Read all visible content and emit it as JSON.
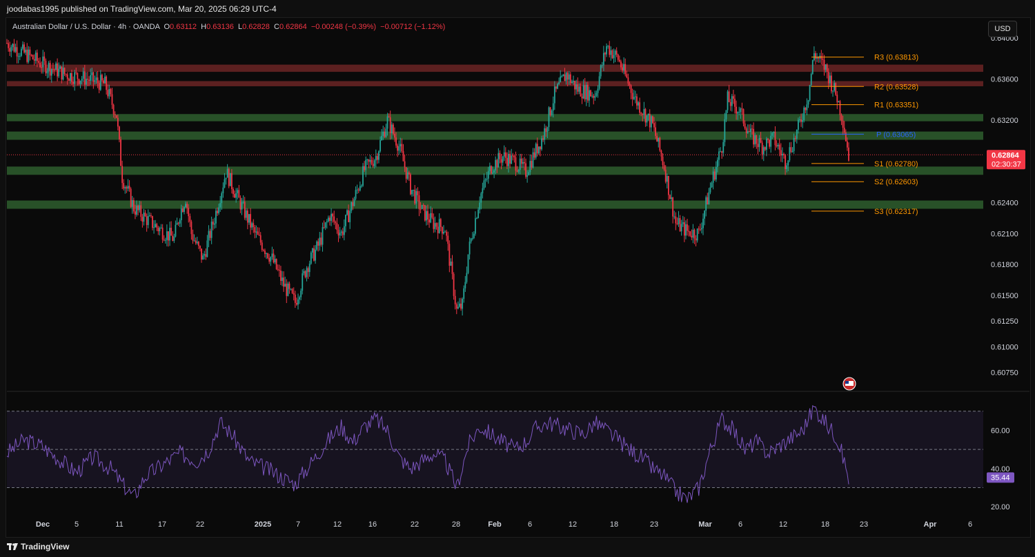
{
  "header": {
    "published": "joodabas1995 published on TradingView.com, Mar 20, 2025 06:29 UTC-4"
  },
  "legend": {
    "symbol": "Australian Dollar / U.S. Dollar · 4h · OANDA",
    "o_label": "O",
    "o": "0.63112",
    "h_label": "H",
    "h": "0.63136",
    "l_label": "L",
    "l": "0.62828",
    "c_label": "C",
    "c": "0.62864",
    "change": "−0.00248 (−0.39%)",
    "change2": "−0.00712 (−1.12%)"
  },
  "currency_button": "USD",
  "footer": {
    "brand": "TradingView"
  },
  "colors": {
    "up": "#26a69a",
    "down": "#f23645",
    "rsi": "#7e57c2",
    "pivot_orange": "#ff9800",
    "pivot_blue": "#2962ff",
    "zone_green": "#2e5e2e",
    "zone_red": "#6b2424"
  },
  "chart_data": [
    {
      "type": "candlestick",
      "timeframe": "4h",
      "y_ticks": [
        "0.64000",
        "0.63600",
        "0.63200",
        "0.62400",
        "0.62100",
        "0.61800",
        "0.61500",
        "0.61250",
        "0.61000",
        "0.60750"
      ],
      "y_tick_values": [
        0.64,
        0.636,
        0.632,
        0.624,
        0.621,
        0.618,
        0.615,
        0.6125,
        0.61,
        0.6075
      ],
      "x_ticks": [
        "Dec",
        "5",
        "11",
        "17",
        "22",
        "2025",
        "7",
        "12",
        "16",
        "22",
        "28",
        "Feb",
        "6",
        "12",
        "18",
        "23",
        "Mar",
        "6",
        "12",
        "18",
        "23",
        "Apr",
        "6"
      ],
      "last_price": "0.62864",
      "countdown": "02:30:37",
      "pivots": [
        {
          "label": "R3 (0.63813)",
          "value": 0.63813
        },
        {
          "label": "R2 (0.63528)",
          "value": 0.63528
        },
        {
          "label": "R1 (0.63351)",
          "value": 0.63351
        },
        {
          "label": "P (0.63065)",
          "value": 0.63065
        },
        {
          "label": "S1 (0.62780)",
          "value": 0.6278
        },
        {
          "label": "S2 (0.62603)",
          "value": 0.62603
        },
        {
          "label": "S3 (0.62317)",
          "value": 0.62317
        }
      ],
      "zones": [
        {
          "kind": "resistance",
          "low": 0.6367,
          "high": 0.6374
        },
        {
          "kind": "resistance",
          "low": 0.6353,
          "high": 0.6358
        },
        {
          "kind": "support",
          "low": 0.6319,
          "high": 0.6326
        },
        {
          "kind": "support",
          "low": 0.6301,
          "high": 0.6309
        },
        {
          "kind": "support",
          "low": 0.6267,
          "high": 0.6275
        },
        {
          "kind": "support",
          "low": 0.6234,
          "high": 0.6242
        }
      ],
      "close_path": [
        [
          0,
          0.6395
        ],
        [
          3,
          0.6385
        ],
        [
          6,
          0.6375
        ],
        [
          10,
          0.6365
        ],
        [
          14,
          0.636
        ],
        [
          17,
          0.6355
        ],
        [
          19,
          0.6325
        ],
        [
          20,
          0.6265
        ],
        [
          22,
          0.6235
        ],
        [
          24,
          0.6225
        ],
        [
          27,
          0.6212
        ],
        [
          29,
          0.6205
        ],
        [
          30,
          0.623
        ],
        [
          31,
          0.6245
        ],
        [
          32,
          0.621
        ],
        [
          34,
          0.6185
        ],
        [
          36,
          0.6225
        ],
        [
          38,
          0.627
        ],
        [
          40,
          0.6245
        ],
        [
          43,
          0.621
        ],
        [
          46,
          0.6185
        ],
        [
          48,
          0.616
        ],
        [
          50,
          0.6143
        ],
        [
          52,
          0.6178
        ],
        [
          54,
          0.6198
        ],
        [
          56,
          0.6228
        ],
        [
          58,
          0.621
        ],
        [
          60,
          0.624
        ],
        [
          62,
          0.6272
        ],
        [
          64,
          0.6285
        ],
        [
          66,
          0.632
        ],
        [
          68,
          0.6295
        ],
        [
          70,
          0.6255
        ],
        [
          72,
          0.6232
        ],
        [
          74,
          0.622
        ],
        [
          76,
          0.6215
        ],
        [
          78,
          0.6135
        ],
        [
          79,
          0.614
        ],
        [
          80,
          0.619
        ],
        [
          82,
          0.6245
        ],
        [
          84,
          0.6275
        ],
        [
          86,
          0.6285
        ],
        [
          88,
          0.628
        ],
        [
          90,
          0.627
        ],
        [
          93,
          0.6305
        ],
        [
          95,
          0.6345
        ],
        [
          97,
          0.6365
        ],
        [
          99,
          0.635
        ],
        [
          102,
          0.6345
        ],
        [
          104,
          0.6392
        ],
        [
          106,
          0.638
        ],
        [
          109,
          0.634
        ],
        [
          112,
          0.6315
        ],
        [
          114,
          0.6275
        ],
        [
          116,
          0.622
        ],
        [
          118,
          0.6212
        ],
        [
          120,
          0.621
        ],
        [
          122,
          0.6255
        ],
        [
          124,
          0.6295
        ],
        [
          125,
          0.634
        ],
        [
          127,
          0.633
        ],
        [
          129,
          0.6305
        ],
        [
          131,
          0.6295
        ],
        [
          133,
          0.6302
        ],
        [
          135,
          0.628
        ],
        [
          137,
          0.6308
        ],
        [
          139,
          0.6345
        ],
        [
          140,
          0.6385
        ],
        [
          142,
          0.637
        ],
        [
          144,
          0.6342
        ],
        [
          145,
          0.632
        ],
        [
          146,
          0.6286
        ]
      ],
      "price_range": [
        0.6058,
        0.6418
      ]
    },
    {
      "type": "line",
      "name": "RSI",
      "y_ticks": [
        "60.00",
        "40.00",
        "20.00"
      ],
      "y_tick_values": [
        60,
        40,
        20
      ],
      "bands": [
        70,
        50,
        30
      ],
      "current": "35.44",
      "range": [
        15,
        80
      ],
      "path": [
        [
          0,
          48
        ],
        [
          3,
          55
        ],
        [
          6,
          52
        ],
        [
          9,
          45
        ],
        [
          12,
          38
        ],
        [
          15,
          46
        ],
        [
          18,
          40
        ],
        [
          20,
          32
        ],
        [
          22,
          25
        ],
        [
          24,
          36
        ],
        [
          27,
          42
        ],
        [
          30,
          48
        ],
        [
          33,
          44
        ],
        [
          35,
          50
        ],
        [
          37,
          64
        ],
        [
          39,
          58
        ],
        [
          42,
          44
        ],
        [
          45,
          40
        ],
        [
          48,
          35
        ],
        [
          50,
          32
        ],
        [
          53,
          44
        ],
        [
          56,
          56
        ],
        [
          58,
          62
        ],
        [
          60,
          54
        ],
        [
          62,
          62
        ],
        [
          64,
          66
        ],
        [
          66,
          60
        ],
        [
          68,
          46
        ],
        [
          70,
          40
        ],
        [
          72,
          44
        ],
        [
          74,
          48
        ],
        [
          76,
          44
        ],
        [
          78,
          30
        ],
        [
          80,
          52
        ],
        [
          82,
          62
        ],
        [
          84,
          58
        ],
        [
          86,
          54
        ],
        [
          88,
          50
        ],
        [
          90,
          54
        ],
        [
          92,
          62
        ],
        [
          94,
          64
        ],
        [
          96,
          62
        ],
        [
          98,
          60
        ],
        [
          100,
          58
        ],
        [
          102,
          64
        ],
        [
          104,
          60
        ],
        [
          106,
          55
        ],
        [
          108,
          50
        ],
        [
          110,
          46
        ],
        [
          112,
          40
        ],
        [
          114,
          36
        ],
        [
          116,
          28
        ],
        [
          118,
          24
        ],
        [
          120,
          30
        ],
        [
          122,
          50
        ],
        [
          124,
          66
        ],
        [
          126,
          60
        ],
        [
          128,
          50
        ],
        [
          130,
          54
        ],
        [
          132,
          48
        ],
        [
          134,
          52
        ],
        [
          136,
          56
        ],
        [
          138,
          60
        ],
        [
          140,
          72
        ],
        [
          142,
          64
        ],
        [
          144,
          56
        ],
        [
          145,
          46
        ],
        [
          146,
          35
        ]
      ]
    }
  ]
}
